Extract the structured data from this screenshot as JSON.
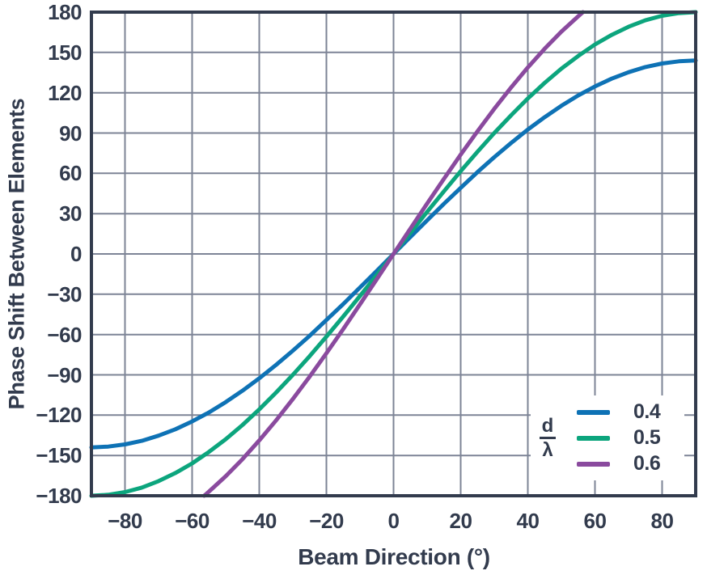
{
  "colors": {
    "frame": "#323b4d",
    "grid": "#7d8496",
    "text": "#323b4d",
    "background": "#ffffff",
    "series_blue": "#0e72b5",
    "series_green": "#0ca57d",
    "series_purple": "#8a4a9e"
  },
  "chart_data": {
    "type": "line",
    "title": "",
    "xlabel": "Beam Direction (°)",
    "ylabel": "Phase Shift Between Elements",
    "xlim": [
      -90,
      90
    ],
    "ylim": [
      -180,
      180
    ],
    "x_ticks": [
      -80,
      -60,
      -40,
      -20,
      0,
      20,
      40,
      60,
      80
    ],
    "y_ticks": [
      180,
      150,
      120,
      90,
      60,
      30,
      0,
      -30,
      -60,
      -90,
      -120,
      -150,
      -180
    ],
    "grid": "on",
    "legend": {
      "numerator": "d",
      "denominator": "λ",
      "position": "lower right"
    },
    "series": [
      {
        "name": "0.4",
        "color": "#0e72b5",
        "points": [
          [
            -90,
            -144
          ],
          [
            -85,
            -143.4
          ],
          [
            -80,
            -141.8
          ],
          [
            -75,
            -139.1
          ],
          [
            -70,
            -135.3
          ],
          [
            -65,
            -130.5
          ],
          [
            -60,
            -124.7
          ],
          [
            -55,
            -118
          ],
          [
            -50,
            -110.3
          ],
          [
            -45,
            -101.8
          ],
          [
            -40,
            -92.6
          ],
          [
            -35,
            -82.6
          ],
          [
            -30,
            -72
          ],
          [
            -25,
            -60.9
          ],
          [
            -20,
            -49.2
          ],
          [
            -15,
            -37.3
          ],
          [
            -10,
            -25
          ],
          [
            -5,
            -12.6
          ],
          [
            0,
            0
          ],
          [
            5,
            12.6
          ],
          [
            10,
            25
          ],
          [
            15,
            37.3
          ],
          [
            20,
            49.2
          ],
          [
            25,
            60.9
          ],
          [
            30,
            72
          ],
          [
            35,
            82.6
          ],
          [
            40,
            92.6
          ],
          [
            45,
            101.8
          ],
          [
            50,
            110.3
          ],
          [
            55,
            118
          ],
          [
            60,
            124.7
          ],
          [
            65,
            130.5
          ],
          [
            70,
            135.3
          ],
          [
            75,
            139.1
          ],
          [
            80,
            141.8
          ],
          [
            85,
            143.4
          ],
          [
            90,
            144
          ]
        ]
      },
      {
        "name": "0.5",
        "color": "#0ca57d",
        "points": [
          [
            -90,
            -180
          ],
          [
            -85,
            -179.3
          ],
          [
            -80,
            -177.3
          ],
          [
            -75,
            -173.9
          ],
          [
            -70,
            -169.1
          ],
          [
            -65,
            -163.1
          ],
          [
            -60,
            -155.9
          ],
          [
            -55,
            -147.4
          ],
          [
            -50,
            -137.9
          ],
          [
            -45,
            -127.3
          ],
          [
            -40,
            -115.7
          ],
          [
            -35,
            -103.2
          ],
          [
            -30,
            -90
          ],
          [
            -25,
            -76.1
          ],
          [
            -20,
            -61.6
          ],
          [
            -15,
            -46.6
          ],
          [
            -10,
            -31.3
          ],
          [
            -5,
            -15.7
          ],
          [
            0,
            0
          ],
          [
            5,
            15.7
          ],
          [
            10,
            31.3
          ],
          [
            15,
            46.6
          ],
          [
            20,
            61.6
          ],
          [
            25,
            76.1
          ],
          [
            30,
            90
          ],
          [
            35,
            103.2
          ],
          [
            40,
            115.7
          ],
          [
            45,
            127.3
          ],
          [
            50,
            137.9
          ],
          [
            55,
            147.4
          ],
          [
            60,
            155.9
          ],
          [
            65,
            163.1
          ],
          [
            70,
            169.1
          ],
          [
            75,
            173.9
          ],
          [
            80,
            177.3
          ],
          [
            85,
            179.3
          ],
          [
            90,
            180
          ]
        ]
      },
      {
        "name": "0.6",
        "color": "#8a4a9e",
        "points": [
          [
            -56.4,
            -180
          ],
          [
            -55,
            -176.9
          ],
          [
            -50,
            -165.5
          ],
          [
            -45,
            -152.7
          ],
          [
            -40,
            -138.8
          ],
          [
            -35,
            -123.9
          ],
          [
            -30,
            -108
          ],
          [
            -25,
            -91.3
          ],
          [
            -20,
            -73.9
          ],
          [
            -15,
            -55.9
          ],
          [
            -10,
            -37.5
          ],
          [
            -5,
            -18.8
          ],
          [
            0,
            0
          ],
          [
            5,
            18.8
          ],
          [
            10,
            37.5
          ],
          [
            15,
            55.9
          ],
          [
            20,
            73.9
          ],
          [
            25,
            91.3
          ],
          [
            30,
            108
          ],
          [
            35,
            123.9
          ],
          [
            40,
            138.8
          ],
          [
            45,
            152.7
          ],
          [
            50,
            165.5
          ],
          [
            55,
            176.9
          ],
          [
            56.4,
            180
          ]
        ]
      }
    ]
  }
}
